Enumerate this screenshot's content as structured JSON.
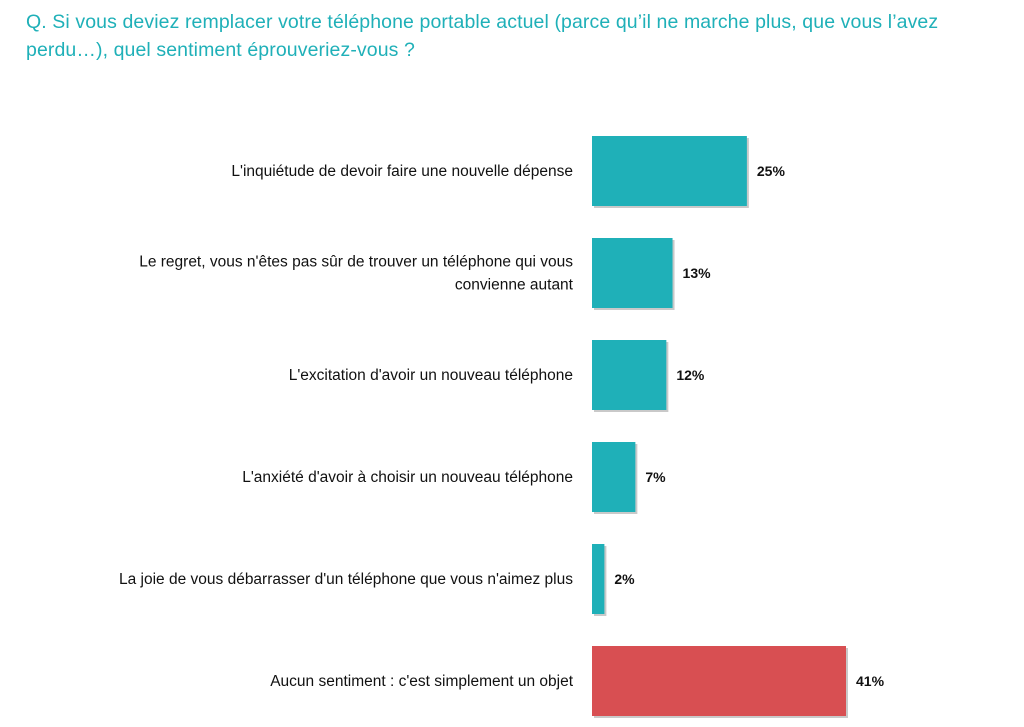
{
  "question": "Q. Si vous deviez remplacer votre téléphone portable actuel (parce qu’il ne marche plus, que vous l’avez perdu…), quel sentiment éprouveriez-vous ?",
  "colors": {
    "title": "#1fb0b8",
    "bar_default": "#1fb0b8",
    "bar_highlight": "#d84f52"
  },
  "chart_data": {
    "type": "bar",
    "orientation": "horizontal",
    "title": "Q. Si vous deviez remplacer votre téléphone portable actuel (parce qu’il ne marche plus, que vous l’avez perdu…), quel sentiment éprouveriez-vous ?",
    "categories": [
      [
        "L'inquiétude de devoir faire une nouvelle dépense"
      ],
      [
        "Le regret, vous n'êtes pas sûr de trouver un téléphone qui vous",
        "convienne autant"
      ],
      [
        "L'excitation d'avoir un nouveau téléphone"
      ],
      [
        "L'anxiété d'avoir à choisir un nouveau téléphone"
      ],
      [
        "La joie de vous débarrasser d'un téléphone que vous n'aimez plus"
      ],
      [
        "Aucun sentiment : c'est simplement un objet"
      ]
    ],
    "values": [
      25,
      13,
      12,
      7,
      2,
      41
    ],
    "value_labels": [
      "25%",
      "13%",
      "12%",
      "7%",
      "2%",
      "41%"
    ],
    "highlight_index": 5,
    "xlim": [
      0,
      41
    ],
    "grid": false,
    "legend": "none",
    "xlabel": "",
    "ylabel": ""
  }
}
